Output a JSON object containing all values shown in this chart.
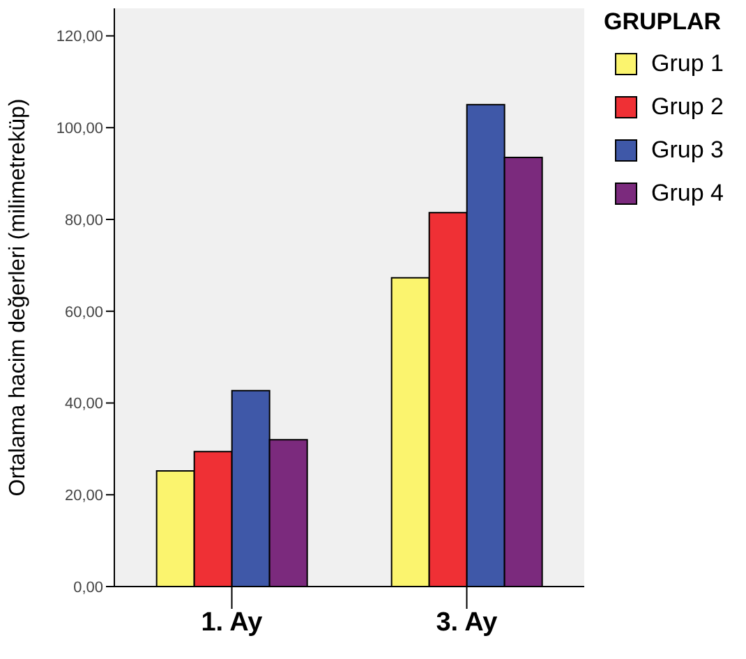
{
  "chart_data": {
    "type": "bar",
    "ylabel": "Ortalama hacim değerleri (milimetreküp)",
    "legend_title": "GRUPLAR",
    "legend": "top right",
    "categories": [
      "1. Ay",
      "3. Ay"
    ],
    "series": [
      {
        "name": "Grup 1",
        "color": "#fbf46e",
        "values": [
          25.2,
          67.3
        ]
      },
      {
        "name": "Grup 2",
        "color": "#ef3035",
        "values": [
          29.4,
          81.5
        ]
      },
      {
        "name": "Grup 3",
        "color": "#3f58a8",
        "values": [
          42.7,
          105.0
        ]
      },
      {
        "name": "Grup 4",
        "color": "#7b2a7d",
        "values": [
          32.0,
          93.5
        ]
      }
    ],
    "ylim": [
      0,
      126
    ],
    "yticks": [
      {
        "value": 0,
        "label": "0,00"
      },
      {
        "value": 20,
        "label": "20,00"
      },
      {
        "value": 40,
        "label": "40,00"
      },
      {
        "value": 60,
        "label": "60,00"
      },
      {
        "value": 80,
        "label": "80,00"
      },
      {
        "value": 100,
        "label": "100,00"
      },
      {
        "value": 120,
        "label": "120,00"
      }
    ]
  }
}
